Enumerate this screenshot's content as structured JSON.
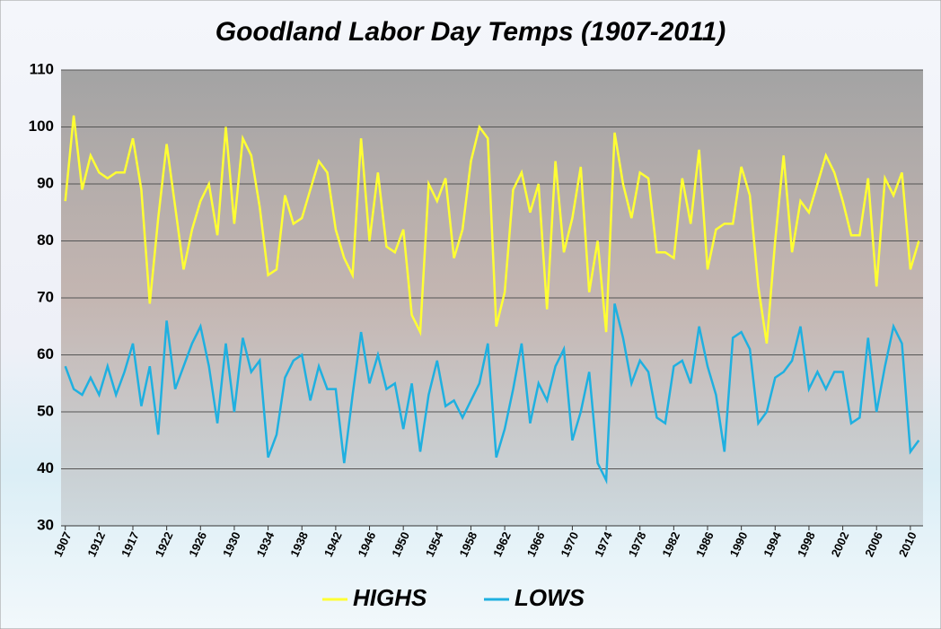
{
  "chart_data": {
    "type": "line",
    "title": "Goodland Labor Day Temps (1907-2011)",
    "categories": [
      "1907",
      null,
      null,
      null,
      "1912",
      null,
      null,
      null,
      "1917",
      null,
      null,
      null,
      "1922",
      null,
      null,
      null,
      "1926",
      null,
      null,
      null,
      "1930",
      null,
      null,
      null,
      "1934",
      null,
      null,
      null,
      "1938",
      null,
      null,
      null,
      "1942",
      null,
      null,
      null,
      "1946",
      null,
      null,
      null,
      "1950",
      null,
      null,
      null,
      "1954",
      null,
      null,
      null,
      "1958",
      null,
      null,
      null,
      "1962",
      null,
      null,
      null,
      "1966",
      null,
      null,
      null,
      "1970",
      null,
      null,
      null,
      "1974",
      null,
      null,
      null,
      "1978",
      null,
      null,
      null,
      "1982",
      null,
      null,
      null,
      "1986",
      null,
      null,
      null,
      "1990",
      null,
      null,
      null,
      "1994",
      null,
      null,
      null,
      "1998",
      null,
      null,
      null,
      "2002",
      null,
      null,
      null,
      "2006",
      null,
      null,
      null,
      "2010",
      null
    ],
    "series": [
      {
        "name": "HIGHS",
        "color": "#ffff33",
        "values": [
          87,
          102,
          89,
          95,
          92,
          91,
          92,
          92,
          98,
          89,
          69,
          84,
          97,
          86,
          75,
          82,
          87,
          90,
          81,
          100,
          83,
          98,
          95,
          86,
          74,
          75,
          88,
          83,
          84,
          89,
          94,
          92,
          82,
          77,
          74,
          98,
          80,
          92,
          79,
          78,
          82,
          67,
          64,
          90,
          87,
          91,
          77,
          82,
          94,
          100,
          98,
          65,
          71,
          89,
          92,
          85,
          90,
          68,
          94,
          78,
          84,
          93,
          71,
          80,
          64,
          99,
          90,
          84,
          92,
          91,
          78,
          78,
          77,
          91,
          83,
          96,
          75,
          82,
          83,
          83,
          93,
          88,
          72,
          62,
          80,
          95,
          78,
          87,
          85,
          90,
          95,
          92,
          87,
          81,
          81,
          91,
          72,
          91,
          88,
          92,
          75,
          80
        ]
      },
      {
        "name": "LOWS",
        "color": "#1fb0e0",
        "values": [
          58,
          54,
          53,
          56,
          53,
          58,
          53,
          57,
          62,
          51,
          58,
          46,
          66,
          54,
          58,
          62,
          65,
          58,
          48,
          62,
          50,
          63,
          57,
          59,
          42,
          46,
          56,
          59,
          60,
          52,
          58,
          54,
          54,
          41,
          53,
          64,
          55,
          60,
          54,
          55,
          47,
          55,
          43,
          53,
          59,
          51,
          52,
          49,
          52,
          55,
          62,
          42,
          47,
          54,
          62,
          48,
          55,
          52,
          58,
          61,
          45,
          50,
          57,
          41,
          38,
          69,
          63,
          55,
          59,
          57,
          49,
          48,
          58,
          59,
          55,
          65,
          58,
          53,
          43,
          63,
          64,
          61,
          48,
          50,
          56,
          57,
          59,
          65,
          54,
          57,
          54,
          57,
          57,
          48,
          49,
          63,
          50,
          58,
          65,
          62,
          43,
          45
        ]
      }
    ],
    "ylim": [
      30,
      110
    ],
    "yticks": [
      30,
      40,
      50,
      60,
      70,
      80,
      90,
      100,
      110
    ],
    "grid": true,
    "legend": "bottom"
  }
}
